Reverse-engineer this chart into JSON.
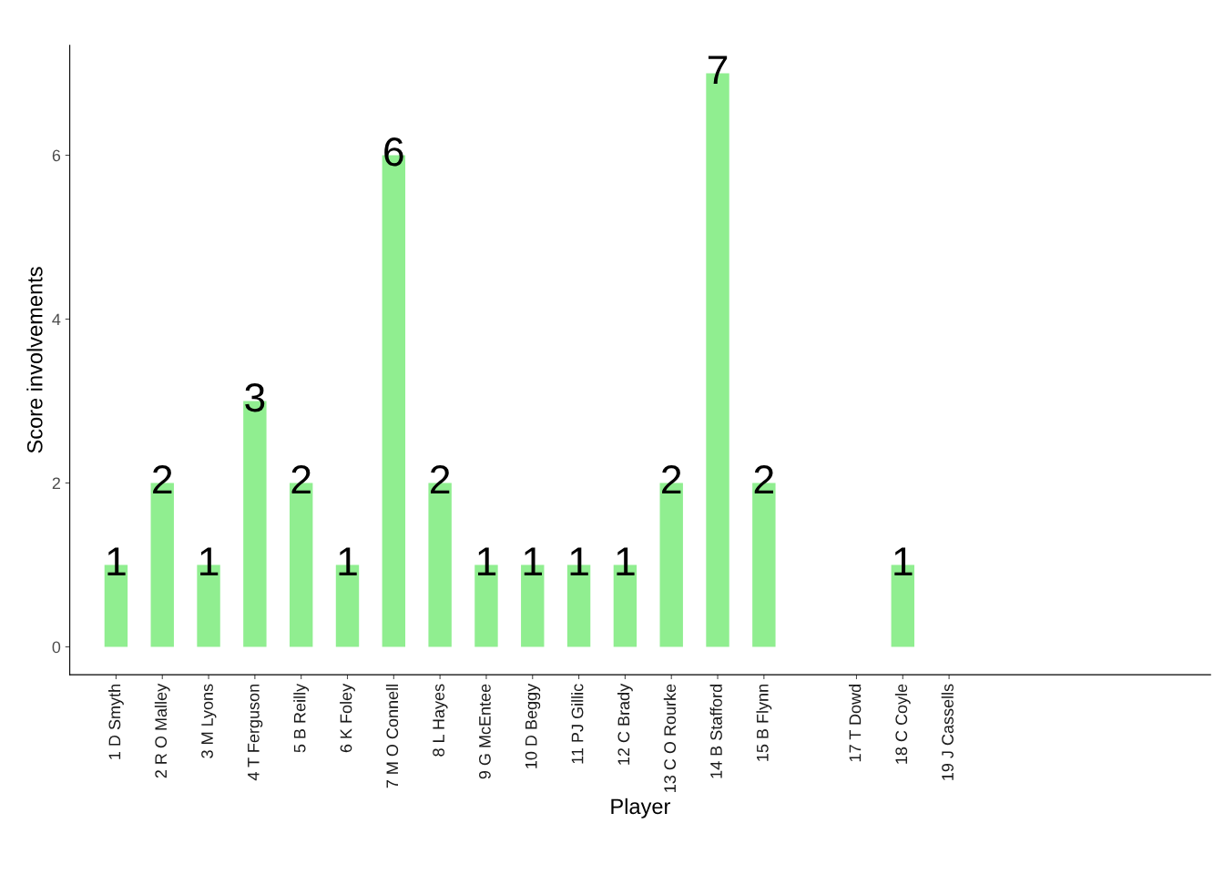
{
  "chart_data": {
    "type": "bar",
    "xlabel": "Player",
    "ylabel": "Score involvements",
    "categories": [
      "1 D Smyth",
      "2 R O Malley",
      "3 M Lyons",
      "4 T Ferguson",
      "5 B Reilly",
      "6 K Foley",
      "7 M O Connell",
      "8 L Hayes",
      "9 G McEntee",
      "10 D Beggy",
      "11 PJ Gillic",
      "12 C Brady",
      "13 C O Rourke",
      "14 B Stafford",
      "15 B Flynn",
      null,
      "17 T Dowd",
      "18 C Coyle",
      "19 J Cassells",
      null,
      null,
      null,
      null,
      null
    ],
    "values": [
      1,
      2,
      1,
      3,
      2,
      1,
      6,
      2,
      1,
      1,
      1,
      1,
      2,
      7,
      2,
      null,
      0,
      1,
      0,
      null,
      null,
      null,
      null,
      null
    ],
    "value_labels": [
      "1",
      "2",
      "1",
      "3",
      "2",
      "1",
      "6",
      "2",
      "1",
      "1",
      "1",
      "1",
      "2",
      "7",
      "2",
      null,
      null,
      "1",
      null,
      null,
      null,
      null,
      null,
      null
    ],
    "color": "#90ee90",
    "ylim": [
      -0.34,
      7.34
    ],
    "yticks": [
      0,
      2,
      4,
      6
    ],
    "grid": false
  }
}
